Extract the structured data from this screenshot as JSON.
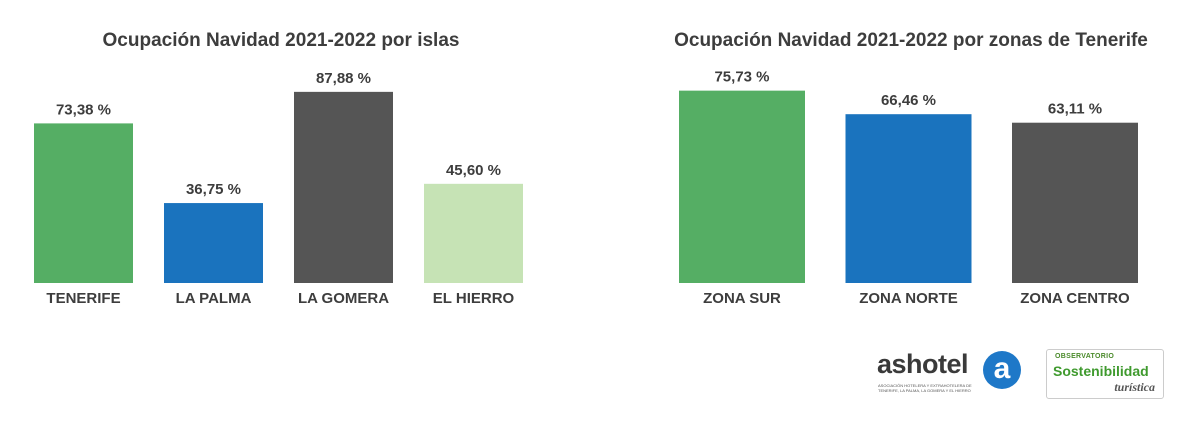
{
  "chart_data": [
    {
      "type": "bar",
      "title": "Ocupación Navidad 2021-2022 por islas",
      "categories": [
        "TENERIFE",
        "LA PALMA",
        "LA GOMERA",
        "EL HIERRO"
      ],
      "values": [
        73.38,
        36.75,
        87.88,
        45.6
      ],
      "value_labels": [
        "73,38 %",
        "36,75 %",
        "87,88 %",
        "45,60 %"
      ],
      "colors": [
        "#55ae64",
        "#1a73be",
        "#555555",
        "#c6e3b5"
      ],
      "ylim": [
        0,
        100
      ],
      "grid": false,
      "legend": "none"
    },
    {
      "type": "bar",
      "title": "Ocupación Navidad 2021-2022 por zonas de Tenerife",
      "categories": [
        "ZONA SUR",
        "ZONA NORTE",
        "ZONA CENTRO"
      ],
      "values": [
        75.73,
        66.46,
        63.11
      ],
      "value_labels": [
        "75,73 %",
        "66,46 %",
        "63,11 %"
      ],
      "colors": [
        "#55ae64",
        "#1a73be",
        "#555555"
      ],
      "ylim": [
        0,
        100
      ],
      "grid": false,
      "legend": "none"
    }
  ],
  "logos": {
    "ashotel": {
      "name": "ashotel",
      "mark": "a",
      "subtitle": "ASOCIACIÓN HOTELERA Y EXTRAHOTELERA DE TENERIFE, LA PALMA, LA GOMERA Y EL HIERRO",
      "color": "#1e78c8"
    },
    "observatorio": {
      "top": "OBSERVATORIO",
      "main": "Sostenibilidad",
      "sub": "turística"
    }
  }
}
